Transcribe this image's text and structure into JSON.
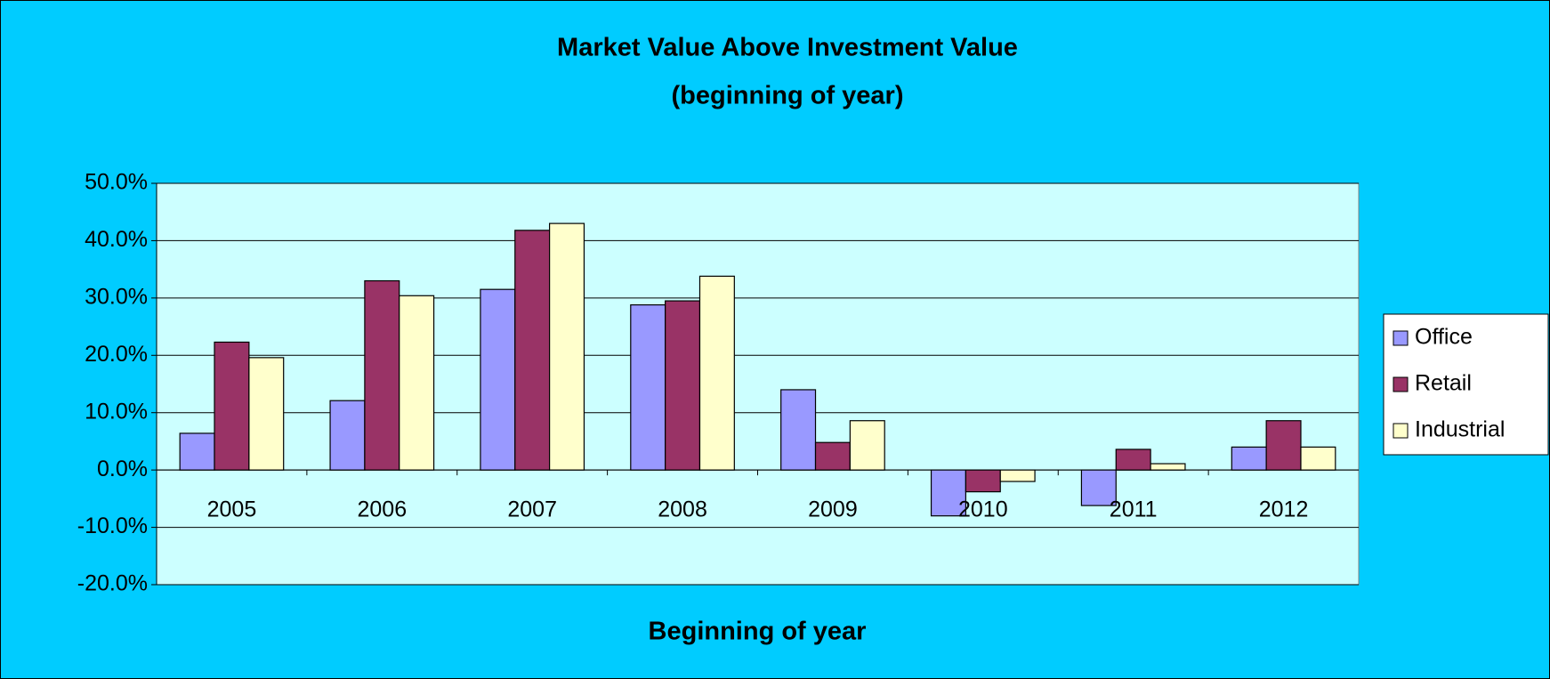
{
  "chart_data": {
    "type": "bar",
    "title": "Market Value Above Investment Value",
    "subtitle": "(beginning of year)",
    "x_label": "Beginning of year",
    "categories": [
      "2005",
      "2006",
      "2007",
      "2008",
      "2009",
      "2010",
      "2011",
      "2012"
    ],
    "series": [
      {
        "name": "Office",
        "color": "#9999ff",
        "values": [
          6.4,
          12.1,
          31.5,
          28.8,
          14.0,
          -8.0,
          -6.2,
          4.0
        ]
      },
      {
        "name": "Retail",
        "color": "#993366",
        "values": [
          22.3,
          33.0,
          41.8,
          29.5,
          4.8,
          -3.8,
          3.6,
          8.6
        ]
      },
      {
        "name": "Industrial",
        "color": "#ffffcc",
        "values": [
          19.6,
          30.4,
          43.0,
          33.8,
          8.6,
          -2.0,
          1.1,
          4.0
        ]
      }
    ],
    "ylim": [
      -20,
      50
    ],
    "yticks": [
      {
        "value": -20,
        "label": "-20.0%"
      },
      {
        "value": -10,
        "label": "-10.0%"
      },
      {
        "value": 0,
        "label": "0.0%"
      },
      {
        "value": 10,
        "label": "10.0%"
      },
      {
        "value": 20,
        "label": "20.0%"
      },
      {
        "value": 30,
        "label": "30.0%"
      },
      {
        "value": 40,
        "label": "40.0%"
      },
      {
        "value": 50,
        "label": "50.0%"
      }
    ],
    "grid": true,
    "legend": "right"
  }
}
